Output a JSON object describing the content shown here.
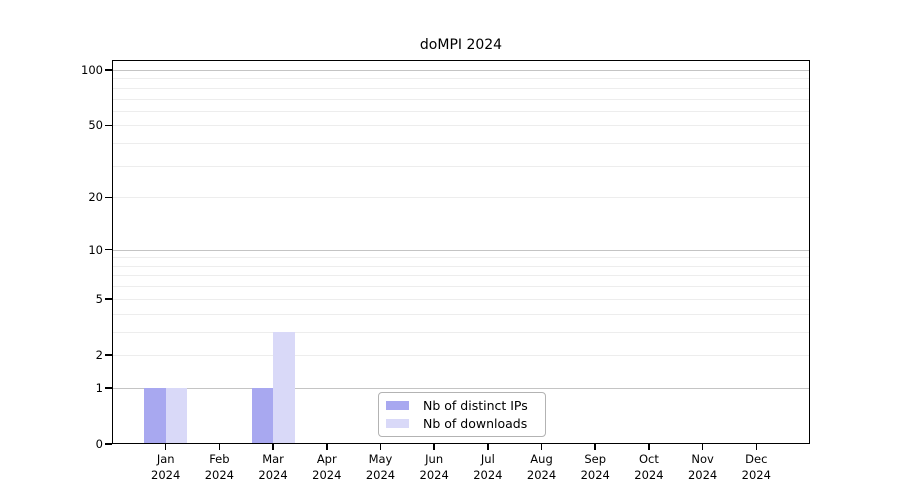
{
  "chart_data": {
    "type": "bar",
    "title": "doMPI 2024",
    "x_tick_months": [
      "Jan",
      "Feb",
      "Mar",
      "Apr",
      "May",
      "Jun",
      "Jul",
      "Aug",
      "Sep",
      "Oct",
      "Nov",
      "Dec"
    ],
    "x_tick_year": "2024",
    "series": [
      {
        "name": "Nb of distinct IPs",
        "color": "#a8a8f0",
        "values": [
          1,
          0,
          1,
          0,
          0,
          0,
          0,
          0,
          0,
          0,
          0,
          0
        ]
      },
      {
        "name": "Nb of downloads",
        "color": "#d9d9f8",
        "values": [
          1,
          0,
          3,
          0,
          0,
          0,
          0,
          0,
          0,
          0,
          0,
          0
        ]
      }
    ],
    "yscale": "log10(1+value)",
    "ylim": [
      0,
      100
    ],
    "yticks": [
      0,
      1,
      2,
      5,
      10,
      20,
      50,
      100
    ],
    "major_gridlines": [
      1,
      10,
      100
    ],
    "minor_gridlines": [
      2,
      3,
      4,
      5,
      6,
      7,
      8,
      9,
      20,
      30,
      40,
      50,
      60,
      70,
      80,
      90
    ],
    "grid": "horizontal only",
    "legend_position": "lower center"
  },
  "colors": {
    "bar_distinct_ips": "#a8a8f0",
    "bar_downloads": "#d9d9f8",
    "gridline_major": "#c4c4c4",
    "gridline_minor": "#ededed",
    "spine": "#000000",
    "legend_border": "#b3b3b3"
  }
}
